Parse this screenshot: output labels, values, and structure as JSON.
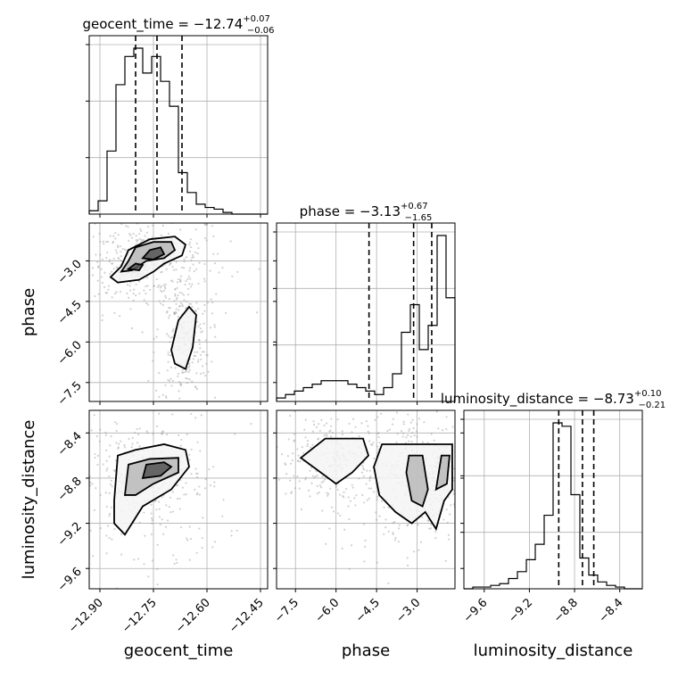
{
  "chart_data": {
    "type": "corner",
    "parameters": [
      {
        "name": "geocent_time",
        "median": -12.74,
        "plus": "0.07",
        "minus": "0.06",
        "title_main": "geocent_time = −12.74",
        "title_sup": "+0.07",
        "title_sub": "−0.06",
        "range": [
          -12.93,
          -12.43
        ],
        "ticks": [
          -12.9,
          -12.75,
          -12.6,
          -12.45
        ],
        "tick_labels": [
          "−12.90",
          "−12.75",
          "−12.60",
          "−12.45"
        ],
        "quantiles": [
          -12.8,
          -12.74,
          -12.67
        ],
        "hist": {
          "edges_start": -12.93,
          "bin_width": 0.025,
          "counts": [
            2,
            8,
            38,
            78,
            95,
            100,
            85,
            95,
            80,
            65,
            25,
            13,
            6,
            4,
            3,
            1,
            0,
            0,
            0,
            0
          ]
        }
      },
      {
        "name": "phase",
        "median": -3.13,
        "plus": "0.67",
        "minus": "1.65",
        "title_main": "phase = −3.13",
        "title_sup": "+0.67",
        "title_sub": "−1.65",
        "range": [
          -8.2,
          -1.6
        ],
        "ticks": [
          -7.5,
          -6.0,
          -4.5,
          -3.0
        ],
        "tick_labels": [
          "−7.5",
          "−6.0",
          "−4.5",
          "−3.0"
        ],
        "quantiles": [
          -4.78,
          -3.13,
          -2.46
        ],
        "hist": {
          "edges_start": -8.2,
          "bin_width": 0.33,
          "counts": [
            1,
            2,
            3,
            4,
            5,
            6,
            6,
            6,
            5,
            4,
            3,
            2,
            4,
            8,
            20,
            28,
            15,
            22,
            48,
            30
          ]
        }
      },
      {
        "name": "luminosity_distance",
        "median": -8.73,
        "plus": "0.10",
        "minus": "0.21",
        "title_main": "luminosity_distance = −8.73",
        "title_sup": "+0.10",
        "title_sub": "−0.21",
        "range": [
          -9.78,
          -8.2
        ],
        "ticks": [
          -9.6,
          -9.2,
          -8.8,
          -8.4
        ],
        "tick_labels": [
          "−9.6",
          "−9.2",
          "−8.8",
          "−8.4"
        ],
        "quantiles": [
          -8.94,
          -8.73,
          -8.63
        ],
        "hist": {
          "edges_start": -9.78,
          "bin_width": 0.079,
          "counts": [
            0,
            1,
            1,
            2,
            3,
            6,
            10,
            17,
            26,
            43,
            97,
            95,
            55,
            18,
            8,
            4,
            2,
            1,
            0,
            0
          ]
        }
      }
    ],
    "ylabels": [
      "phase",
      "luminosity_distance"
    ],
    "xlabels": [
      "geocent_time",
      "phase",
      "luminosity_distance"
    ],
    "grid": true,
    "contours": {
      "phase_vs_geocent_time": [
        {
          "level": "outer",
          "points": [
            [
              -12.87,
              -3.6
            ],
            [
              -12.84,
              -3.2
            ],
            [
              -12.82,
              -2.6
            ],
            [
              -12.76,
              -2.2
            ],
            [
              -12.69,
              -2.1
            ],
            [
              -12.66,
              -2.4
            ],
            [
              -12.67,
              -2.8
            ],
            [
              -12.72,
              -3.1
            ],
            [
              -12.75,
              -3.4
            ],
            [
              -12.79,
              -3.7
            ],
            [
              -12.85,
              -3.8
            ],
            [
              -12.87,
              -3.6
            ]
          ]
        },
        {
          "level": "mid",
          "points": [
            [
              -12.84,
              -3.4
            ],
            [
              -12.82,
              -3.0
            ],
            [
              -12.8,
              -2.5
            ],
            [
              -12.75,
              -2.3
            ],
            [
              -12.7,
              -2.3
            ],
            [
              -12.69,
              -2.6
            ],
            [
              -12.72,
              -2.9
            ],
            [
              -12.77,
              -3.0
            ],
            [
              -12.81,
              -3.35
            ],
            [
              -12.84,
              -3.4
            ]
          ]
        },
        {
          "level": "inner",
          "points": [
            [
              -12.78,
              -2.9
            ],
            [
              -12.76,
              -2.6
            ],
            [
              -12.73,
              -2.5
            ],
            [
              -12.72,
              -2.75
            ],
            [
              -12.75,
              -2.95
            ],
            [
              -12.78,
              -2.9
            ]
          ]
        },
        {
          "level": "inner",
          "points": [
            [
              -12.82,
              -3.3
            ],
            [
              -12.8,
              -3.1
            ],
            [
              -12.78,
              -3.15
            ],
            [
              -12.79,
              -3.35
            ],
            [
              -12.82,
              -3.3
            ]
          ]
        },
        {
          "level": "outer",
          "points": [
            [
              -12.7,
              -6.3
            ],
            [
              -12.68,
              -5.2
            ],
            [
              -12.65,
              -4.7
            ],
            [
              -12.63,
              -5.0
            ],
            [
              -12.64,
              -6.2
            ],
            [
              -12.66,
              -7.0
            ],
            [
              -12.69,
              -6.8
            ],
            [
              -12.7,
              -6.3
            ]
          ]
        }
      ],
      "luminosity_distance_vs_geocent_time": [
        {
          "level": "outer",
          "points": [
            [
              -12.86,
              -9.0
            ],
            [
              -12.85,
              -8.6
            ],
            [
              -12.8,
              -8.55
            ],
            [
              -12.72,
              -8.5
            ],
            [
              -12.66,
              -8.55
            ],
            [
              -12.65,
              -8.7
            ],
            [
              -12.7,
              -8.9
            ],
            [
              -12.78,
              -9.05
            ],
            [
              -12.83,
              -9.3
            ],
            [
              -12.86,
              -9.2
            ],
            [
              -12.86,
              -9.0
            ]
          ]
        },
        {
          "level": "mid",
          "points": [
            [
              -12.83,
              -8.95
            ],
            [
              -12.82,
              -8.68
            ],
            [
              -12.76,
              -8.63
            ],
            [
              -12.68,
              -8.62
            ],
            [
              -12.68,
              -8.75
            ],
            [
              -12.75,
              -8.85
            ],
            [
              -12.8,
              -8.95
            ],
            [
              -12.83,
              -8.95
            ]
          ]
        },
        {
          "level": "inner",
          "points": [
            [
              -12.78,
              -8.8
            ],
            [
              -12.77,
              -8.68
            ],
            [
              -12.72,
              -8.66
            ],
            [
              -12.7,
              -8.7
            ],
            [
              -12.73,
              -8.78
            ],
            [
              -12.78,
              -8.8
            ]
          ]
        }
      ],
      "luminosity_distance_vs_phase": [
        {
          "level": "outer",
          "points": [
            [
              -7.3,
              -8.62
            ],
            [
              -6.4,
              -8.45
            ],
            [
              -5.0,
              -8.45
            ],
            [
              -4.8,
              -8.6
            ],
            [
              -5.4,
              -8.75
            ],
            [
              -6.0,
              -8.85
            ],
            [
              -7.3,
              -8.62
            ]
          ]
        },
        {
          "level": "outer",
          "points": [
            [
              -4.6,
              -8.7
            ],
            [
              -4.3,
              -8.5
            ],
            [
              -3.3,
              -8.5
            ],
            [
              -2.4,
              -8.5
            ],
            [
              -1.7,
              -8.5
            ],
            [
              -1.7,
              -8.9
            ],
            [
              -2.0,
              -9.0
            ],
            [
              -2.3,
              -9.25
            ],
            [
              -2.7,
              -9.1
            ],
            [
              -3.2,
              -9.2
            ],
            [
              -3.8,
              -9.1
            ],
            [
              -4.4,
              -8.95
            ],
            [
              -4.6,
              -8.7
            ]
          ]
        },
        {
          "level": "mid",
          "points": [
            [
              -3.4,
              -8.75
            ],
            [
              -3.3,
              -8.6
            ],
            [
              -2.8,
              -8.6
            ],
            [
              -2.6,
              -8.9
            ],
            [
              -2.8,
              -9.05
            ],
            [
              -3.2,
              -9.0
            ],
            [
              -3.4,
              -8.75
            ]
          ]
        },
        {
          "level": "mid",
          "points": [
            [
              -2.3,
              -8.9
            ],
            [
              -2.1,
              -8.6
            ],
            [
              -1.8,
              -8.6
            ],
            [
              -1.9,
              -8.85
            ],
            [
              -2.3,
              -8.9
            ]
          ]
        }
      ]
    }
  }
}
